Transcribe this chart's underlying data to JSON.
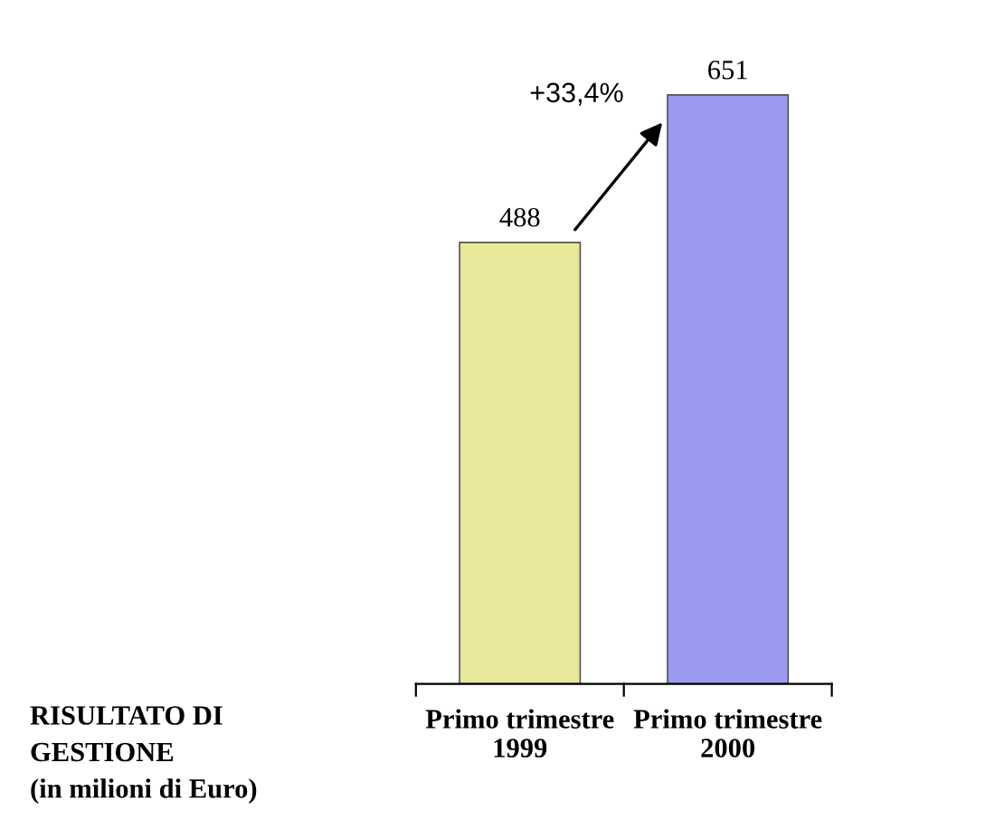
{
  "chart_data": {
    "type": "bar",
    "categories": [
      "Primo trimestre\n1999",
      "Primo trimestre\n2000"
    ],
    "values": [
      488,
      651
    ],
    "colors": [
      "#e8e89a",
      "#9a9af0"
    ],
    "data_labels": true,
    "annotations": [
      "+33,4%",
      "RISULTATO DI\nGESTIONE\n(in milioni di Euro)"
    ],
    "grid": false,
    "legend": false
  }
}
